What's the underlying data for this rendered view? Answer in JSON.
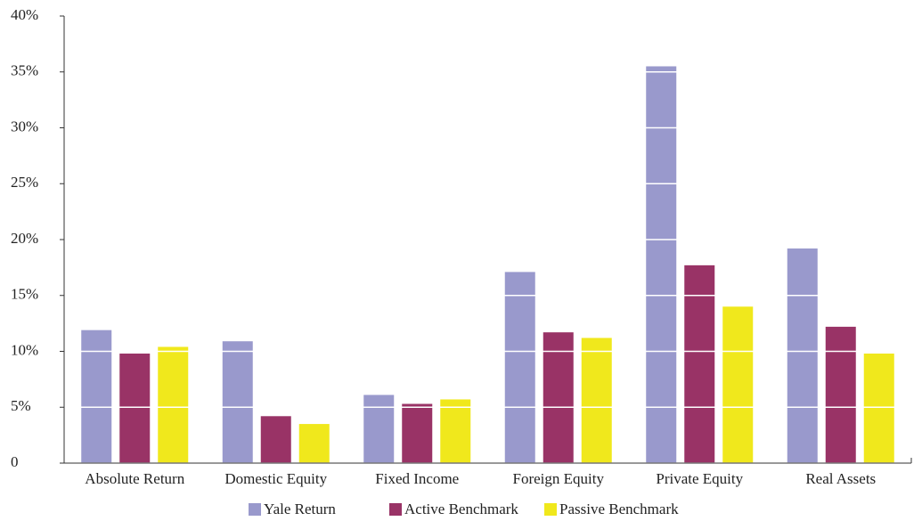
{
  "chart_data": {
    "type": "bar",
    "categories": [
      "Absolute Return",
      "Domestic Equity",
      "Fixed Income",
      "Foreign Equity",
      "Private Equity",
      "Real Assets"
    ],
    "series": [
      {
        "name": "Yale Return",
        "color": "#9999cc",
        "values": [
          11.9,
          10.9,
          6.1,
          17.1,
          35.5,
          19.2
        ]
      },
      {
        "name": "Active Benchmark",
        "color": "#993366",
        "values": [
          9.8,
          4.2,
          5.3,
          11.7,
          17.7,
          12.2
        ]
      },
      {
        "name": "Passive Benchmark",
        "color": "#f0e81c",
        "values": [
          10.4,
          3.5,
          5.7,
          11.2,
          14.0,
          9.8
        ]
      }
    ],
    "ylim": [
      0,
      40
    ],
    "yticks": [
      0,
      {
        "value": 5,
        "label": "5%"
      },
      {
        "value": 10,
        "label": "10%"
      },
      {
        "value": 15,
        "label": "15%"
      },
      {
        "value": 20,
        "label": "20%"
      },
      {
        "value": 25,
        "label": "25%"
      },
      {
        "value": 30,
        "label": "30%"
      },
      {
        "value": 35,
        "label": "35%"
      },
      {
        "value": 40,
        "label": "40%"
      }
    ],
    "grid": true,
    "grid_color": "#ffffff",
    "legend": "bottom"
  }
}
